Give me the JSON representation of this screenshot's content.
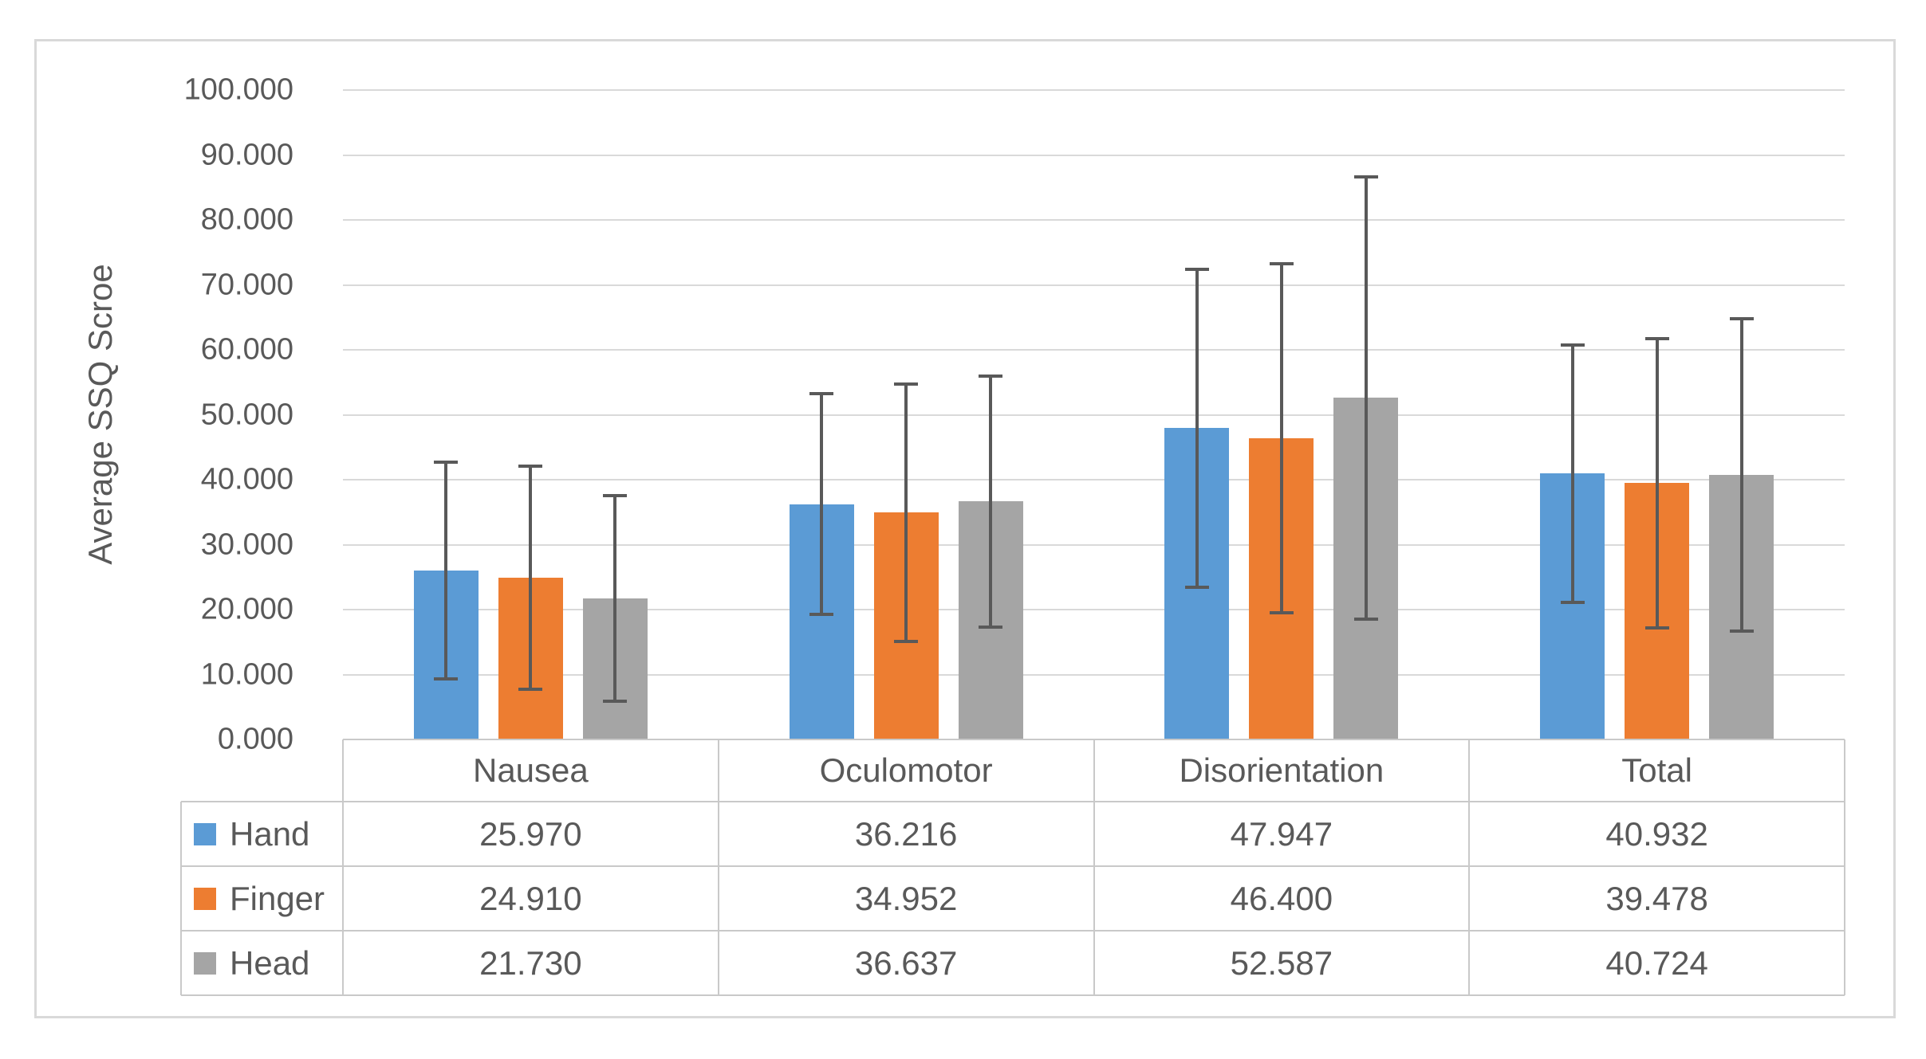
{
  "chart_data": {
    "type": "bar",
    "title": "",
    "xlabel": "",
    "ylabel": "Average SSQ Scroe",
    "ylim": [
      0,
      100
    ],
    "y_tick_step": 10,
    "y_tick_labels": [
      "0.000",
      "10.000",
      "20.000",
      "30.000",
      "40.000",
      "50.000",
      "60.000",
      "70.000",
      "80.000",
      "90.000",
      "100.000"
    ],
    "grid": true,
    "legend_position": "data-table-left",
    "categories": [
      "Nausea",
      "Oculomotor",
      "Disorientation",
      "Total"
    ],
    "series": [
      {
        "name": "Hand",
        "color": "#5B9BD5",
        "values": [
          25.97,
          36.216,
          47.947,
          40.932
        ],
        "error_bars": [
          16.7,
          17.0,
          24.5,
          19.8
        ]
      },
      {
        "name": "Finger",
        "color": "#ED7D31",
        "values": [
          24.91,
          34.952,
          46.4,
          39.478
        ],
        "error_bars": [
          17.2,
          19.8,
          26.9,
          22.3
        ]
      },
      {
        "name": "Head",
        "color": "#A5A5A5",
        "values": [
          21.73,
          36.637,
          52.587,
          40.724
        ],
        "error_bars": [
          15.8,
          19.3,
          34.1,
          24.0
        ]
      }
    ],
    "data_table": {
      "header": [
        "Nausea",
        "Oculomotor",
        "Disorientation",
        "Total"
      ],
      "row_labels": [
        "Hand",
        "Finger",
        "Head"
      ],
      "cells": [
        [
          "25.970",
          "36.216",
          "47.947",
          "40.932"
        ],
        [
          "24.910",
          "34.952",
          "46.400",
          "39.478"
        ],
        [
          "21.730",
          "36.637",
          "52.587",
          "40.724"
        ]
      ]
    }
  },
  "colors": {
    "hand": "#5B9BD5",
    "finger": "#ED7D31",
    "head": "#A5A5A5",
    "error_bar": "#595959",
    "gridline": "#D9D9D9",
    "frame_border": "#D9D9D9",
    "table_border": "#C9C9C9",
    "text": "#595959",
    "background": "#FFFFFF"
  }
}
